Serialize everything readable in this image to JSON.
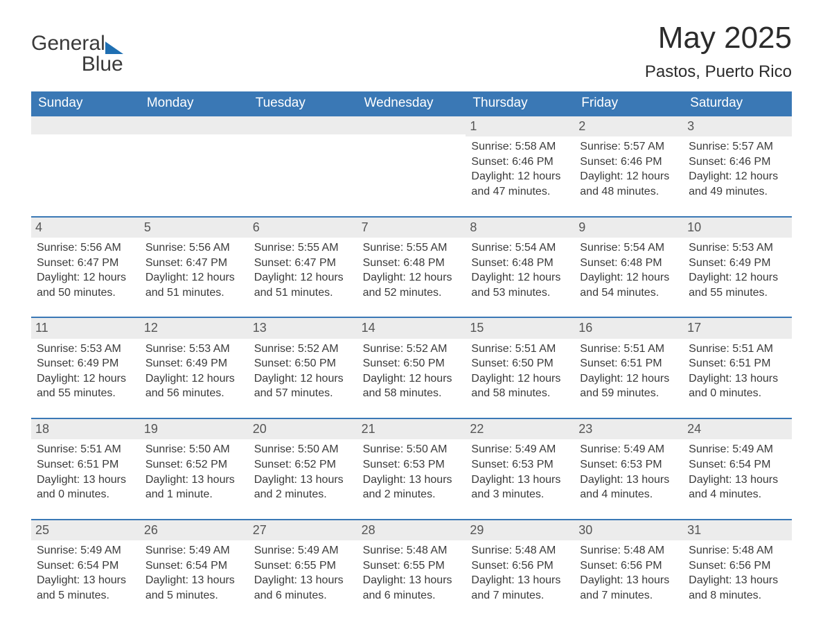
{
  "logo": {
    "word1": "General",
    "word2": "Blue"
  },
  "header": {
    "title": "May 2025",
    "location": "Pastos, Puerto Rico"
  },
  "colors": {
    "header_bg": "#3a78b5",
    "header_text": "#ffffff",
    "daynum_bg": "#ececec",
    "daynum_text": "#555555",
    "body_text": "#3a3a3a",
    "rule": "#3a78b5",
    "logo_blue": "#1f6fb2"
  },
  "day_labels": [
    "Sunday",
    "Monday",
    "Tuesday",
    "Wednesday",
    "Thursday",
    "Friday",
    "Saturday"
  ],
  "weeks": [
    [
      {
        "blank": true
      },
      {
        "blank": true
      },
      {
        "blank": true
      },
      {
        "blank": true
      },
      {
        "n": "1",
        "sunrise": "5:58 AM",
        "sunset": "6:46 PM",
        "daylight": "12 hours and 47 minutes."
      },
      {
        "n": "2",
        "sunrise": "5:57 AM",
        "sunset": "6:46 PM",
        "daylight": "12 hours and 48 minutes."
      },
      {
        "n": "3",
        "sunrise": "5:57 AM",
        "sunset": "6:46 PM",
        "daylight": "12 hours and 49 minutes."
      }
    ],
    [
      {
        "n": "4",
        "sunrise": "5:56 AM",
        "sunset": "6:47 PM",
        "daylight": "12 hours and 50 minutes."
      },
      {
        "n": "5",
        "sunrise": "5:56 AM",
        "sunset": "6:47 PM",
        "daylight": "12 hours and 51 minutes."
      },
      {
        "n": "6",
        "sunrise": "5:55 AM",
        "sunset": "6:47 PM",
        "daylight": "12 hours and 51 minutes."
      },
      {
        "n": "7",
        "sunrise": "5:55 AM",
        "sunset": "6:48 PM",
        "daylight": "12 hours and 52 minutes."
      },
      {
        "n": "8",
        "sunrise": "5:54 AM",
        "sunset": "6:48 PM",
        "daylight": "12 hours and 53 minutes."
      },
      {
        "n": "9",
        "sunrise": "5:54 AM",
        "sunset": "6:48 PM",
        "daylight": "12 hours and 54 minutes."
      },
      {
        "n": "10",
        "sunrise": "5:53 AM",
        "sunset": "6:49 PM",
        "daylight": "12 hours and 55 minutes."
      }
    ],
    [
      {
        "n": "11",
        "sunrise": "5:53 AM",
        "sunset": "6:49 PM",
        "daylight": "12 hours and 55 minutes."
      },
      {
        "n": "12",
        "sunrise": "5:53 AM",
        "sunset": "6:49 PM",
        "daylight": "12 hours and 56 minutes."
      },
      {
        "n": "13",
        "sunrise": "5:52 AM",
        "sunset": "6:50 PM",
        "daylight": "12 hours and 57 minutes."
      },
      {
        "n": "14",
        "sunrise": "5:52 AM",
        "sunset": "6:50 PM",
        "daylight": "12 hours and 58 minutes."
      },
      {
        "n": "15",
        "sunrise": "5:51 AM",
        "sunset": "6:50 PM",
        "daylight": "12 hours and 58 minutes."
      },
      {
        "n": "16",
        "sunrise": "5:51 AM",
        "sunset": "6:51 PM",
        "daylight": "12 hours and 59 minutes."
      },
      {
        "n": "17",
        "sunrise": "5:51 AM",
        "sunset": "6:51 PM",
        "daylight": "13 hours and 0 minutes."
      }
    ],
    [
      {
        "n": "18",
        "sunrise": "5:51 AM",
        "sunset": "6:51 PM",
        "daylight": "13 hours and 0 minutes."
      },
      {
        "n": "19",
        "sunrise": "5:50 AM",
        "sunset": "6:52 PM",
        "daylight": "13 hours and 1 minute."
      },
      {
        "n": "20",
        "sunrise": "5:50 AM",
        "sunset": "6:52 PM",
        "daylight": "13 hours and 2 minutes."
      },
      {
        "n": "21",
        "sunrise": "5:50 AM",
        "sunset": "6:53 PM",
        "daylight": "13 hours and 2 minutes."
      },
      {
        "n": "22",
        "sunrise": "5:49 AM",
        "sunset": "6:53 PM",
        "daylight": "13 hours and 3 minutes."
      },
      {
        "n": "23",
        "sunrise": "5:49 AM",
        "sunset": "6:53 PM",
        "daylight": "13 hours and 4 minutes."
      },
      {
        "n": "24",
        "sunrise": "5:49 AM",
        "sunset": "6:54 PM",
        "daylight": "13 hours and 4 minutes."
      }
    ],
    [
      {
        "n": "25",
        "sunrise": "5:49 AM",
        "sunset": "6:54 PM",
        "daylight": "13 hours and 5 minutes."
      },
      {
        "n": "26",
        "sunrise": "5:49 AM",
        "sunset": "6:54 PM",
        "daylight": "13 hours and 5 minutes."
      },
      {
        "n": "27",
        "sunrise": "5:49 AM",
        "sunset": "6:55 PM",
        "daylight": "13 hours and 6 minutes."
      },
      {
        "n": "28",
        "sunrise": "5:48 AM",
        "sunset": "6:55 PM",
        "daylight": "13 hours and 6 minutes."
      },
      {
        "n": "29",
        "sunrise": "5:48 AM",
        "sunset": "6:56 PM",
        "daylight": "13 hours and 7 minutes."
      },
      {
        "n": "30",
        "sunrise": "5:48 AM",
        "sunset": "6:56 PM",
        "daylight": "13 hours and 7 minutes."
      },
      {
        "n": "31",
        "sunrise": "5:48 AM",
        "sunset": "6:56 PM",
        "daylight": "13 hours and 8 minutes."
      }
    ]
  ],
  "labels": {
    "sunrise": "Sunrise: ",
    "sunset": "Sunset: ",
    "daylight": "Daylight: "
  }
}
